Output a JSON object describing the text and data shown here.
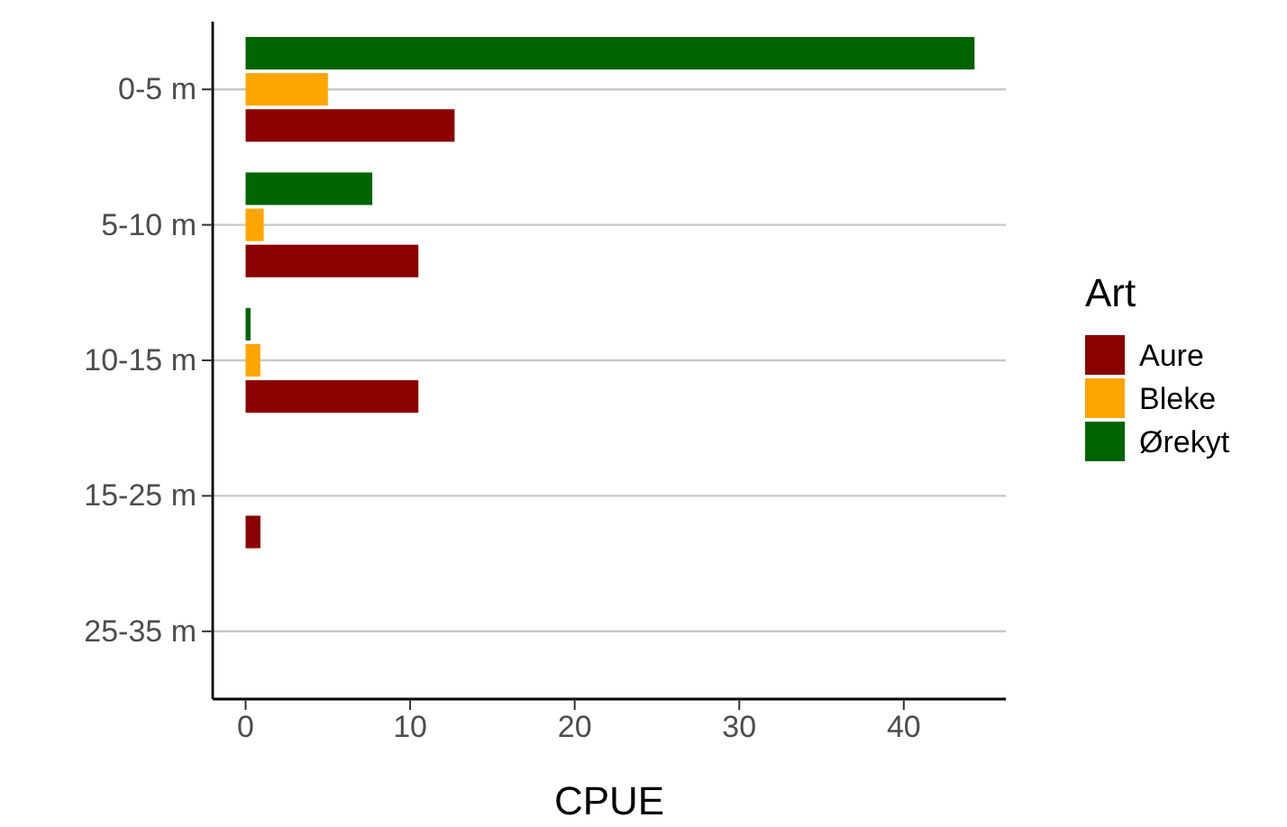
{
  "chart_data": {
    "type": "bar",
    "orientation": "horizontal",
    "xlabel": "CPUE",
    "legend_title": "Art",
    "legend": "right",
    "grid": "y",
    "categories": [
      "0-5 m",
      "5-10 m",
      "10-15 m",
      "15-25 m",
      "25-35 m"
    ],
    "series": [
      {
        "name": "Aure",
        "color": "#8b0000",
        "values": [
          12.7,
          10.5,
          10.5,
          0.9,
          0
        ]
      },
      {
        "name": "Bleke",
        "color": "#ffa500",
        "values": [
          5.0,
          1.1,
          0.9,
          0,
          0
        ]
      },
      {
        "name": "Ørekyt",
        "color": "#006400",
        "values": [
          44.3,
          7.7,
          0.3,
          0,
          0
        ]
      }
    ],
    "xlim": [
      -2,
      46.2
    ],
    "xticks": [
      0,
      10,
      20,
      30,
      40
    ]
  }
}
